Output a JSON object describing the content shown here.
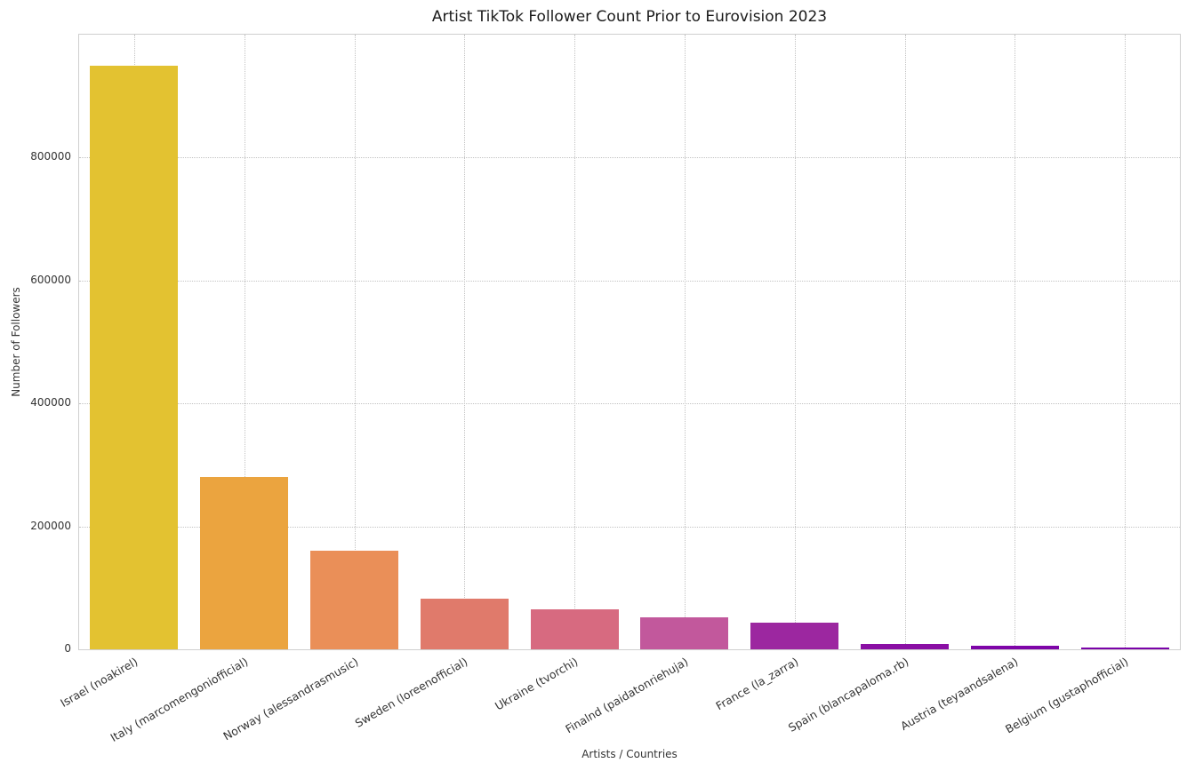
{
  "chart_data": {
    "type": "bar",
    "title": "Artist TikTok Follower Count Prior to Eurovision 2023",
    "xlabel": "Artists / Countries",
    "ylabel": "Number of Followers",
    "categories": [
      "Israel (noakirel)",
      "Italy (marcomengoniofficial)",
      "Norway (alessandrasmusic)",
      "Sweden (loreenofficial)",
      "Ukraine (tvorchi)",
      "Finalnd (paidatonriehuja)",
      "France (la_zarra)",
      "Spain (blancapaloma.rb)",
      "Austria (teyaandsalena)",
      "Belgium (gustaphofficial)"
    ],
    "values": [
      950000,
      280000,
      160000,
      83000,
      65000,
      52000,
      44000,
      8000,
      6500,
      3000
    ],
    "bar_colors": [
      "#e3c231",
      "#eba43f",
      "#ea8f58",
      "#e07a6b",
      "#d76a80",
      "#c2589c",
      "#9c27a0",
      "#8a0fa4",
      "#7e05a8",
      "#7a03a8"
    ],
    "yticks": [
      0,
      200000,
      400000,
      600000,
      800000
    ],
    "ylim": [
      0,
      1000000
    ],
    "bar_width_fraction": 0.8,
    "grid": "dotted-both",
    "legend_position": "none"
  }
}
